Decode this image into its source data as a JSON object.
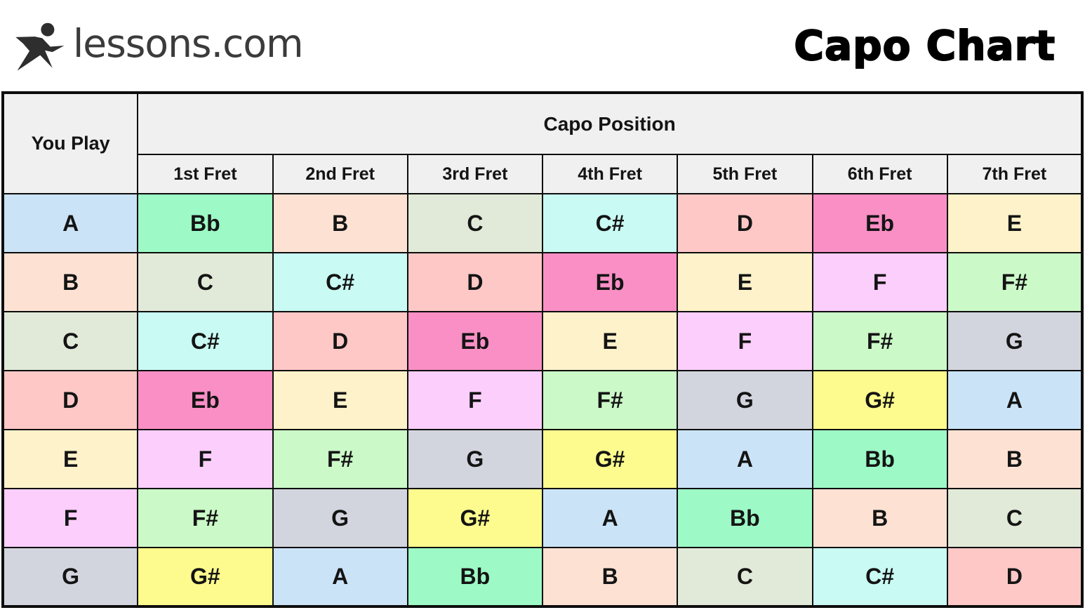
{
  "brand": {
    "logo_text": "lessons.com",
    "logo_icon": "star-person-icon",
    "logo_color": "#3b3b3b",
    "title": "Capo Chart",
    "title_color": "#000000"
  },
  "table": {
    "header_bg": "#f0f0f0",
    "border_color": "#0d0d0d",
    "you_play_label": "You Play",
    "capo_position_label": "Capo Position",
    "fret_headers": [
      "1st Fret",
      "2nd Fret",
      "3rd Fret",
      "4th Fret",
      "5th Fret",
      "6th Fret",
      "7th Fret"
    ],
    "rows": [
      {
        "you_play": "A",
        "cells": [
          "Bb",
          "B",
          "C",
          "C#",
          "D",
          "Eb",
          "E"
        ]
      },
      {
        "you_play": "B",
        "cells": [
          "C",
          "C#",
          "D",
          "Eb",
          "E",
          "F",
          "F#"
        ]
      },
      {
        "you_play": "C",
        "cells": [
          "C#",
          "D",
          "Eb",
          "E",
          "F",
          "F#",
          "G"
        ]
      },
      {
        "you_play": "D",
        "cells": [
          "Eb",
          "E",
          "F",
          "F#",
          "G",
          "G#",
          "A"
        ]
      },
      {
        "you_play": "E",
        "cells": [
          "F",
          "F#",
          "G",
          "G#",
          "A",
          "Bb",
          "B"
        ]
      },
      {
        "you_play": "F",
        "cells": [
          "F#",
          "G",
          "G#",
          "A",
          "Bb",
          "B",
          "C"
        ]
      },
      {
        "you_play": "G",
        "cells": [
          "G#",
          "A",
          "Bb",
          "B",
          "C",
          "C#",
          "D"
        ]
      }
    ],
    "note_colors": {
      "A": "#cbe3f6",
      "Bb": "#9dfac6",
      "B": "#fde2d4",
      "C": "#e1ead8",
      "C#": "#c9fbf4",
      "D": "#fdc8c6",
      "Eb": "#f98fc5",
      "E": "#fdf2ca",
      "F": "#fbcefb",
      "F#": "#cbf9c8",
      "G": "#d2d5de",
      "G#": "#fdfb8e"
    }
  },
  "chart_data": {
    "type": "table",
    "title": "Capo Chart",
    "row_header": "You Play",
    "column_group_header": "Capo Position",
    "columns": [
      "You Play",
      "1st Fret",
      "2nd Fret",
      "3rd Fret",
      "4th Fret",
      "5th Fret",
      "6th Fret",
      "7th Fret"
    ],
    "rows": [
      [
        "A",
        "Bb",
        "B",
        "C",
        "C#",
        "D",
        "Eb",
        "E"
      ],
      [
        "B",
        "C",
        "C#",
        "D",
        "Eb",
        "E",
        "F",
        "F#"
      ],
      [
        "C",
        "C#",
        "D",
        "Eb",
        "E",
        "F",
        "F#",
        "G"
      ],
      [
        "D",
        "Eb",
        "E",
        "F",
        "F#",
        "G",
        "G#",
        "A"
      ],
      [
        "E",
        "F",
        "F#",
        "G",
        "G#",
        "A",
        "Bb",
        "B"
      ],
      [
        "F",
        "F#",
        "G",
        "G#",
        "A",
        "Bb",
        "B",
        "C"
      ],
      [
        "G",
        "G#",
        "A",
        "Bb",
        "B",
        "C",
        "C#",
        "D"
      ]
    ],
    "legend": "Each cell color encodes the chord name; identical chords share identical colors across the grid"
  }
}
